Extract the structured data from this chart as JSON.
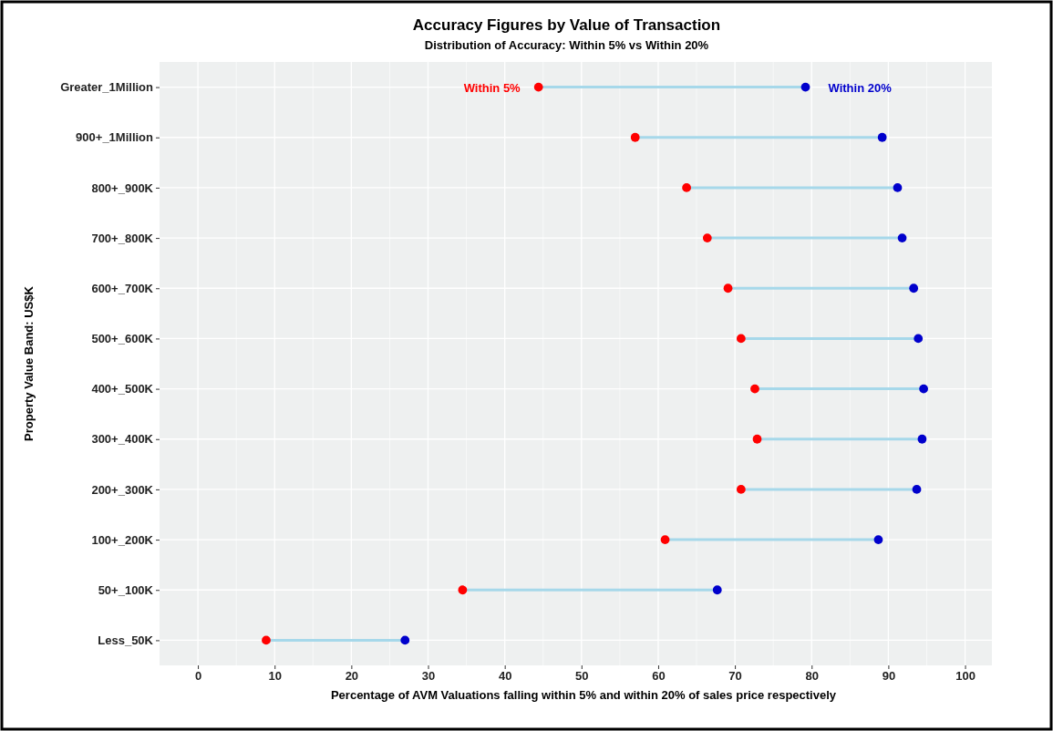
{
  "chart_data": {
    "type": "scatter",
    "orientation": "horizontal",
    "title": "Accuracy Figures by Value of Transaction",
    "subtitle": "Distribution of Accuracy: Within 5% vs Within 20%",
    "xlabel": "Percentage of AVM Valuations falling within 5% and within 20% of sales price respectively",
    "ylabel": "Property Value Band: US$K",
    "categories": [
      "Greater_1Million",
      "900+_1Million",
      "800+_900K",
      "700+_800K",
      "600+_700K",
      "500+_600K",
      "400+_500K",
      "300+_400K",
      "200+_300K",
      "100+_200K",
      "50+_100K",
      "Less_50K"
    ],
    "series": [
      {
        "name": "Within 5%",
        "color": "#ff0000",
        "values": [
          44.4,
          57.0,
          63.7,
          66.4,
          69.1,
          70.8,
          72.6,
          72.9,
          70.8,
          60.9,
          34.5,
          8.9
        ]
      },
      {
        "name": "Within 20%",
        "color": "#0000cc",
        "values": [
          79.2,
          89.2,
          91.2,
          91.8,
          93.3,
          93.9,
          94.6,
          94.4,
          93.7,
          88.7,
          67.7,
          27.0
        ]
      }
    ],
    "xlim": [
      -5,
      103.5
    ],
    "xticks": [
      0,
      10,
      20,
      30,
      40,
      50,
      60,
      70,
      80,
      90,
      100
    ],
    "grid": true,
    "legend": false,
    "marker": "circle"
  }
}
